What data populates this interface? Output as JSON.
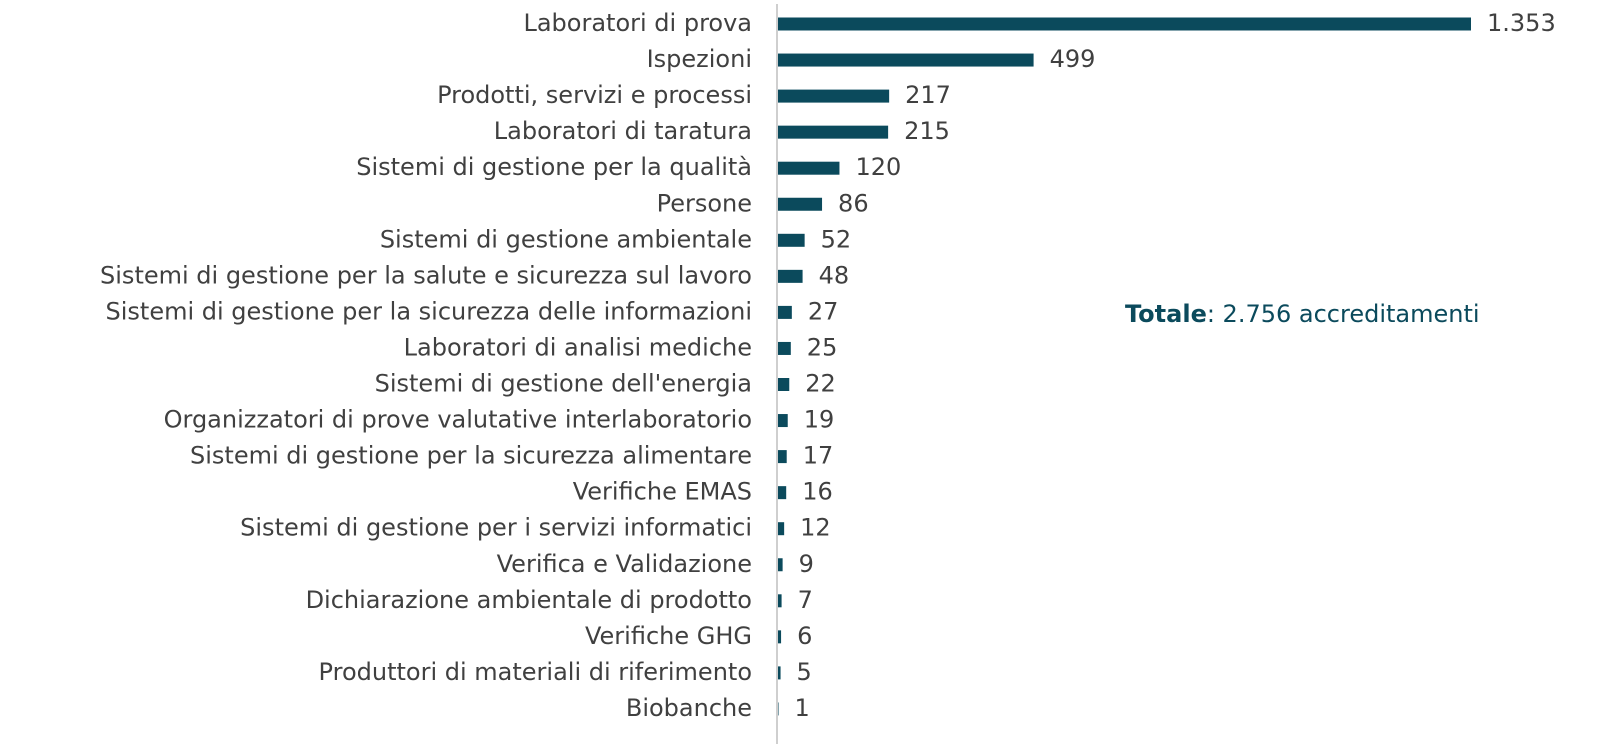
{
  "chart_data": {
    "type": "hbar",
    "categories": [
      "Laboratori di prova",
      "Ispezioni",
      "Prodotti, servizi e processi",
      "Laboratori di taratura",
      "Sistemi di gestione per la qualità",
      "Persone",
      "Sistemi di gestione ambientale",
      "Sistemi di gestione per la salute e sicurezza sul lavoro",
      "Sistemi di gestione per la sicurezza delle informazioni",
      "Laboratori di analisi mediche",
      "Sistemi di gestione dell'energia",
      "Organizzatori di prove valutative interlaboratorio",
      "Sistemi di gestione per la sicurezza alimentare",
      "Verifiche EMAS",
      "Sistemi di gestione per i servizi informatici",
      "Verifica e Validazione",
      "Dichiarazione ambientale di prodotto",
      "Verifiche GHG",
      "Produttori di materiali di riferimento",
      "Biobanche"
    ],
    "values": [
      1353,
      499,
      217,
      215,
      120,
      86,
      52,
      48,
      27,
      25,
      22,
      19,
      17,
      16,
      12,
      9,
      7,
      6,
      5,
      1
    ],
    "value_labels": [
      "1.353",
      "499",
      "217",
      "215",
      "120",
      "86",
      "52",
      "48",
      "27",
      "25",
      "22",
      "19",
      "17",
      "16",
      "12",
      "9",
      "7",
      "6",
      "5",
      "1"
    ],
    "color": "#0b4a5c",
    "annotation": {
      "bold": "Totale",
      "text": ": 2.756 accreditamenti"
    }
  }
}
